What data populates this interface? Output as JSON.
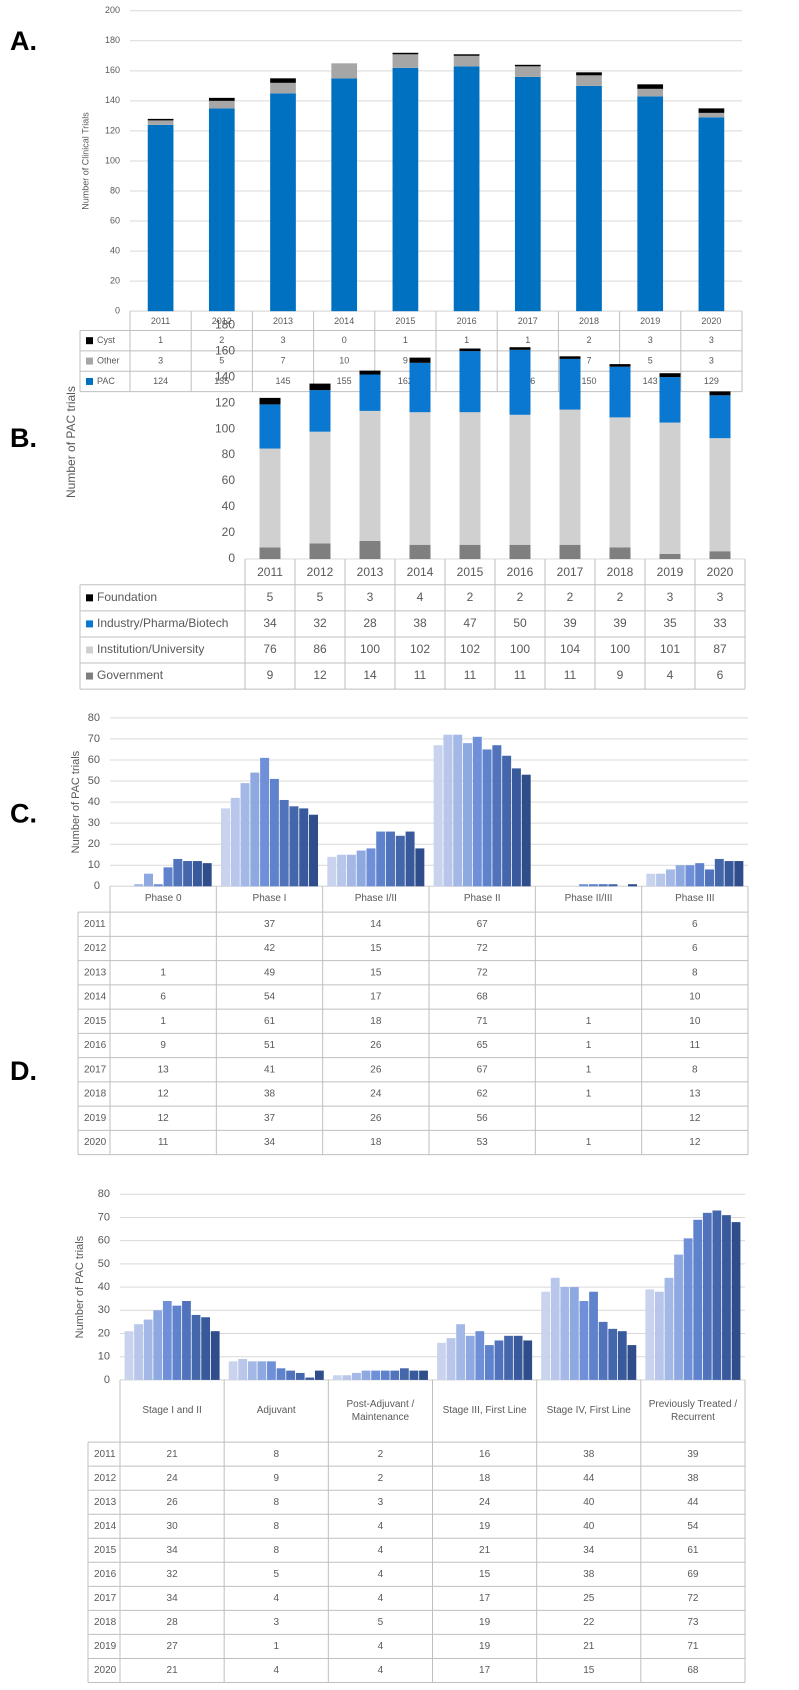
{
  "chart_data": [
    {
      "type": "stacked_bar",
      "panel_label": "A.",
      "ylabel": "Number of Clinical Trials",
      "categories": [
        "2011",
        "2012",
        "2013",
        "2014",
        "2015",
        "2016",
        "2017",
        "2018",
        "2019",
        "2020"
      ],
      "series": [
        {
          "name": "PAC",
          "color": "#0070c0",
          "values": [
            124,
            135,
            145,
            155,
            162,
            163,
            156,
            150,
            143,
            129
          ]
        },
        {
          "name": "Other",
          "color": "#a6a6a6",
          "values": [
            3,
            5,
            7,
            10,
            9,
            7,
            7,
            7,
            5,
            3
          ]
        },
        {
          "name": "Cyst",
          "color": "#000000",
          "values": [
            1,
            2,
            3,
            0,
            1,
            1,
            1,
            2,
            3,
            3
          ]
        }
      ],
      "ylim": [
        0,
        200
      ],
      "yticks": [
        0,
        20,
        40,
        60,
        80,
        100,
        120,
        140,
        160,
        180,
        200
      ],
      "grid": true
    },
    {
      "type": "stacked_bar",
      "panel_label": "B.",
      "ylabel": "Number of PAC trials",
      "categories": [
        "2011",
        "2012",
        "2013",
        "2014",
        "2015",
        "2016",
        "2017",
        "2018",
        "2019",
        "2020"
      ],
      "series": [
        {
          "name": "Government",
          "color": "#7f7f7f",
          "values": [
            9,
            12,
            14,
            11,
            11,
            11,
            11,
            9,
            4,
            6
          ]
        },
        {
          "name": "Institution/University",
          "color": "#d0d0d0",
          "values": [
            76,
            86,
            100,
            102,
            102,
            100,
            104,
            100,
            101,
            87
          ]
        },
        {
          "name": "Industry/Pharma/Biotech",
          "color": "#0a78d0",
          "values": [
            34,
            32,
            28,
            38,
            47,
            50,
            39,
            39,
            35,
            33
          ]
        },
        {
          "name": "Foundation",
          "color": "#000000",
          "values": [
            5,
            5,
            3,
            4,
            2,
            2,
            2,
            2,
            3,
            3
          ]
        }
      ],
      "ylim": [
        0,
        180
      ],
      "yticks": [
        0,
        20,
        40,
        60,
        80,
        100,
        120,
        140,
        160,
        180
      ],
      "grid": false
    },
    {
      "type": "grouped_bar",
      "panel_label": "C.",
      "ylabel": "Number of PAC trials",
      "categories": [
        "Phase 0",
        "Phase I",
        "Phase I/II",
        "Phase II",
        "Phase II/III",
        "Phase III"
      ],
      "series": [
        {
          "name": "2011",
          "color": "#c9d3ee",
          "values": [
            null,
            37,
            14,
            67,
            null,
            6
          ]
        },
        {
          "name": "2012",
          "color": "#b7c6ea",
          "values": [
            null,
            42,
            15,
            72,
            null,
            6
          ]
        },
        {
          "name": "2013",
          "color": "#a3b8e6",
          "values": [
            1,
            49,
            15,
            72,
            null,
            8
          ]
        },
        {
          "name": "2014",
          "color": "#8ea8e0",
          "values": [
            6,
            54,
            17,
            68,
            null,
            10
          ]
        },
        {
          "name": "2015",
          "color": "#6f90d8",
          "values": [
            1,
            61,
            18,
            71,
            1,
            10
          ]
        },
        {
          "name": "2016",
          "color": "#5f82cc",
          "values": [
            9,
            51,
            26,
            65,
            1,
            11
          ]
        },
        {
          "name": "2017",
          "color": "#5073bb",
          "values": [
            13,
            41,
            26,
            67,
            1,
            8
          ]
        },
        {
          "name": "2018",
          "color": "#4466ab",
          "values": [
            12,
            38,
            24,
            62,
            1,
            13
          ]
        },
        {
          "name": "2019",
          "color": "#385a9c",
          "values": [
            12,
            37,
            26,
            56,
            null,
            12
          ]
        },
        {
          "name": "2020",
          "color": "#2e4d8a",
          "values": [
            11,
            34,
            18,
            53,
            1,
            12
          ]
        }
      ],
      "ylim": [
        0,
        80
      ],
      "yticks": [
        0,
        10,
        20,
        30,
        40,
        50,
        60,
        70,
        80
      ],
      "grid": true
    },
    {
      "type": "grouped_bar",
      "panel_label": "D.",
      "ylabel": "Number of PAC trials",
      "categories": [
        "Stage I and II",
        "Adjuvant",
        "Post-Adjuvant / Maintenance",
        "Stage III, First Line",
        "Stage IV, First Line",
        "Previously Treated / Recurrent"
      ],
      "series": [
        {
          "name": "2011",
          "color": "#c9d3ee",
          "values": [
            21,
            8,
            2,
            16,
            38,
            39
          ]
        },
        {
          "name": "2012",
          "color": "#b7c6ea",
          "values": [
            24,
            9,
            2,
            18,
            44,
            38
          ]
        },
        {
          "name": "2013",
          "color": "#a3b8e6",
          "values": [
            26,
            8,
            3,
            24,
            40,
            44
          ]
        },
        {
          "name": "2014",
          "color": "#8ea8e0",
          "values": [
            30,
            8,
            4,
            19,
            40,
            54
          ]
        },
        {
          "name": "2015",
          "color": "#6f90d8",
          "values": [
            34,
            8,
            4,
            21,
            34,
            61
          ]
        },
        {
          "name": "2016",
          "color": "#5f82cc",
          "values": [
            32,
            5,
            4,
            15,
            38,
            69
          ]
        },
        {
          "name": "2017",
          "color": "#5073bb",
          "values": [
            34,
            4,
            4,
            17,
            25,
            72
          ]
        },
        {
          "name": "2018",
          "color": "#4466ab",
          "values": [
            28,
            3,
            5,
            19,
            22,
            73
          ]
        },
        {
          "name": "2019",
          "color": "#385a9c",
          "values": [
            27,
            1,
            4,
            19,
            21,
            71
          ]
        },
        {
          "name": "2020",
          "color": "#2e4d8a",
          "values": [
            21,
            4,
            4,
            17,
            15,
            68
          ]
        }
      ],
      "ylim": [
        0,
        80
      ],
      "yticks": [
        0,
        10,
        20,
        30,
        40,
        50,
        60,
        70,
        80
      ],
      "grid": true
    }
  ]
}
